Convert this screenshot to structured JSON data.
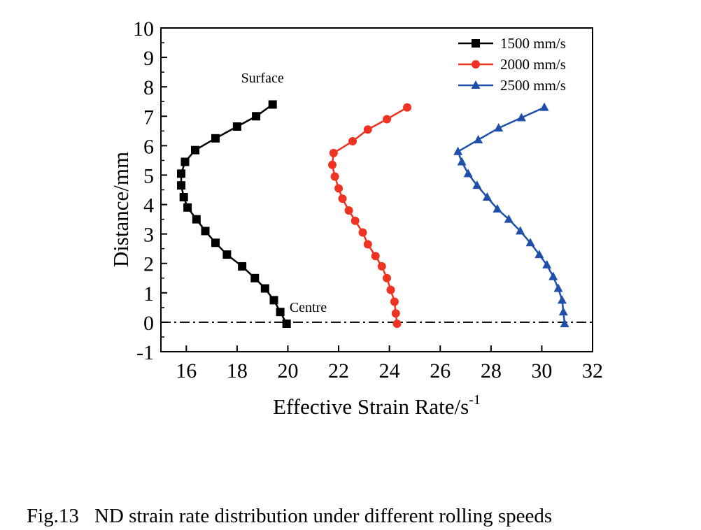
{
  "caption": {
    "number": "Fig.13",
    "text": "ND strain rate distribution under different rolling speeds"
  },
  "chart_data": {
    "type": "line",
    "title": "",
    "xlabel": "Effective Strain Rate/s",
    "xlabel_superscript": "-1",
    "ylabel": "Distance/mm",
    "xlim": [
      15,
      32
    ],
    "ylim": [
      -1,
      10
    ],
    "xticks": [
      16,
      18,
      20,
      22,
      24,
      26,
      28,
      30,
      32
    ],
    "yticks": [
      -1,
      0,
      1,
      2,
      3,
      4,
      5,
      6,
      7,
      8,
      9,
      10
    ],
    "grid": false,
    "legend_position": "top-right",
    "reference_line": {
      "y": 0,
      "style": "dash-dot"
    },
    "annotations": [
      {
        "text": "Surface",
        "x": 19.0,
        "y": 8.15
      },
      {
        "text": "Centre",
        "x": 20.8,
        "y": 0.35
      }
    ],
    "series": [
      {
        "name": "1500 mm/s",
        "color": "#000000",
        "marker": "square",
        "points": [
          [
            19.4,
            7.4
          ],
          [
            18.75,
            7.0
          ],
          [
            18.0,
            6.65
          ],
          [
            17.15,
            6.25
          ],
          [
            16.35,
            5.85
          ],
          [
            15.95,
            5.45
          ],
          [
            15.8,
            5.05
          ],
          [
            15.8,
            4.65
          ],
          [
            15.9,
            4.25
          ],
          [
            16.05,
            3.9
          ],
          [
            16.4,
            3.5
          ],
          [
            16.75,
            3.1
          ],
          [
            17.15,
            2.7
          ],
          [
            17.6,
            2.3
          ],
          [
            18.2,
            1.9
          ],
          [
            18.7,
            1.5
          ],
          [
            19.1,
            1.15
          ],
          [
            19.45,
            0.75
          ],
          [
            19.7,
            0.35
          ],
          [
            19.95,
            -0.05
          ]
        ]
      },
      {
        "name": "2000 mm/s",
        "color": "#ee3322",
        "marker": "circle",
        "points": [
          [
            24.7,
            7.3
          ],
          [
            23.9,
            6.9
          ],
          [
            23.15,
            6.55
          ],
          [
            22.55,
            6.15
          ],
          [
            21.8,
            5.75
          ],
          [
            21.75,
            5.35
          ],
          [
            21.85,
            4.95
          ],
          [
            22.0,
            4.55
          ],
          [
            22.15,
            4.2
          ],
          [
            22.4,
            3.8
          ],
          [
            22.65,
            3.45
          ],
          [
            22.95,
            3.05
          ],
          [
            23.15,
            2.65
          ],
          [
            23.45,
            2.25
          ],
          [
            23.7,
            1.9
          ],
          [
            23.9,
            1.5
          ],
          [
            24.05,
            1.1
          ],
          [
            24.2,
            0.7
          ],
          [
            24.25,
            0.3
          ],
          [
            24.3,
            -0.05
          ]
        ]
      },
      {
        "name": "2500 mm/s",
        "color": "#1f4fa8",
        "marker": "triangle",
        "points": [
          [
            30.1,
            7.3
          ],
          [
            29.2,
            6.95
          ],
          [
            28.3,
            6.6
          ],
          [
            27.5,
            6.2
          ],
          [
            26.7,
            5.8
          ],
          [
            26.85,
            5.45
          ],
          [
            27.1,
            5.05
          ],
          [
            27.45,
            4.65
          ],
          [
            27.85,
            4.25
          ],
          [
            28.25,
            3.85
          ],
          [
            28.7,
            3.5
          ],
          [
            29.15,
            3.1
          ],
          [
            29.55,
            2.7
          ],
          [
            29.9,
            2.3
          ],
          [
            30.2,
            1.95
          ],
          [
            30.45,
            1.55
          ],
          [
            30.65,
            1.15
          ],
          [
            30.8,
            0.75
          ],
          [
            30.85,
            0.35
          ],
          [
            30.9,
            -0.05
          ]
        ]
      }
    ]
  }
}
